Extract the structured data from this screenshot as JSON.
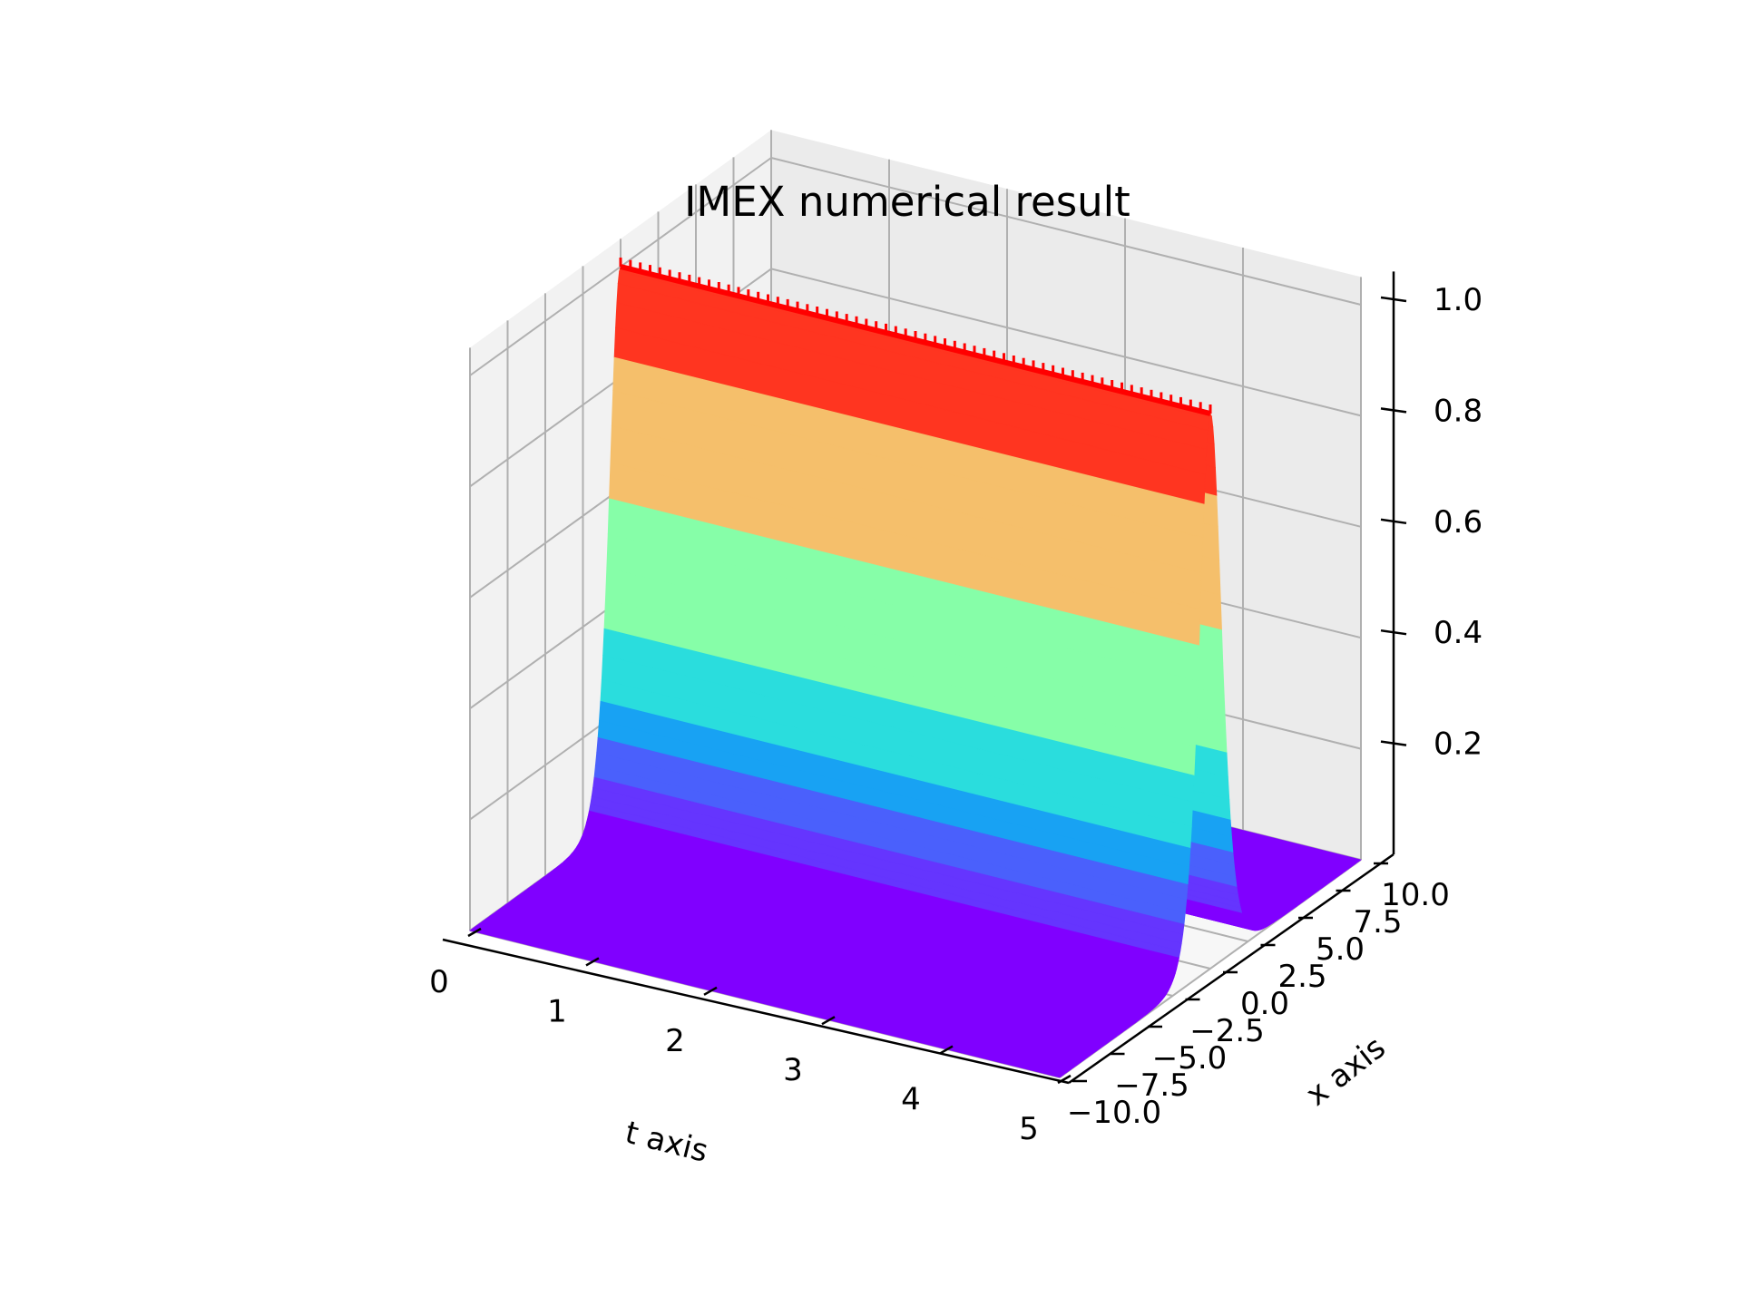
{
  "chart_data": {
    "type": "surface",
    "title": "IMEX numerical result",
    "xlabel": "t axis",
    "ylabel": "x axis",
    "zlabel": "",
    "colormap": "rainbow",
    "colors": {
      "pane_back": "#ebebeb",
      "pane_side": "#f2f2f2",
      "pane_floor": "#f7f7f7",
      "grid": "#b0b0b0",
      "axis": "#000000",
      "peak_ridge": "#ff0000",
      "surface_low": "#8000ff"
    },
    "t_ticks": [
      "0",
      "1",
      "2",
      "3",
      "4",
      "5"
    ],
    "x_ticks": [
      "−10.0",
      "−7.5",
      "−5.0",
      "−2.5",
      "0.0",
      "2.5",
      "5.0",
      "7.5",
      "10.0"
    ],
    "z_ticks": [
      "0.2",
      "0.4",
      "0.6",
      "0.8",
      "1.0"
    ],
    "t_range": [
      0,
      5
    ],
    "x_range": [
      -10,
      10
    ],
    "z_range": [
      0,
      1
    ],
    "function": "u(t, x) = sech^2(x) (travelling pulse, peak 1.0 at x = 0, constant in t)",
    "color_bands": [
      {
        "z_from": 0.0,
        "z_to": 0.06,
        "color": "#8000ff"
      },
      {
        "z_from": 0.06,
        "z_to": 0.12,
        "color": "#6535fe"
      },
      {
        "z_from": 0.12,
        "z_to": 0.17,
        "color": "#4a60fc"
      },
      {
        "z_from": 0.17,
        "z_to": 0.23,
        "color": "#18a2f3"
      },
      {
        "z_from": 0.23,
        "z_to": 0.37,
        "color": "#2adddd"
      },
      {
        "z_from": 0.37,
        "z_to": 0.59,
        "color": "#86fea8"
      },
      {
        "z_from": 0.59,
        "z_to": 0.83,
        "color": "#f5bf6b"
      },
      {
        "z_from": 0.83,
        "z_to": 1.0,
        "color": "#ff3520"
      }
    ]
  }
}
